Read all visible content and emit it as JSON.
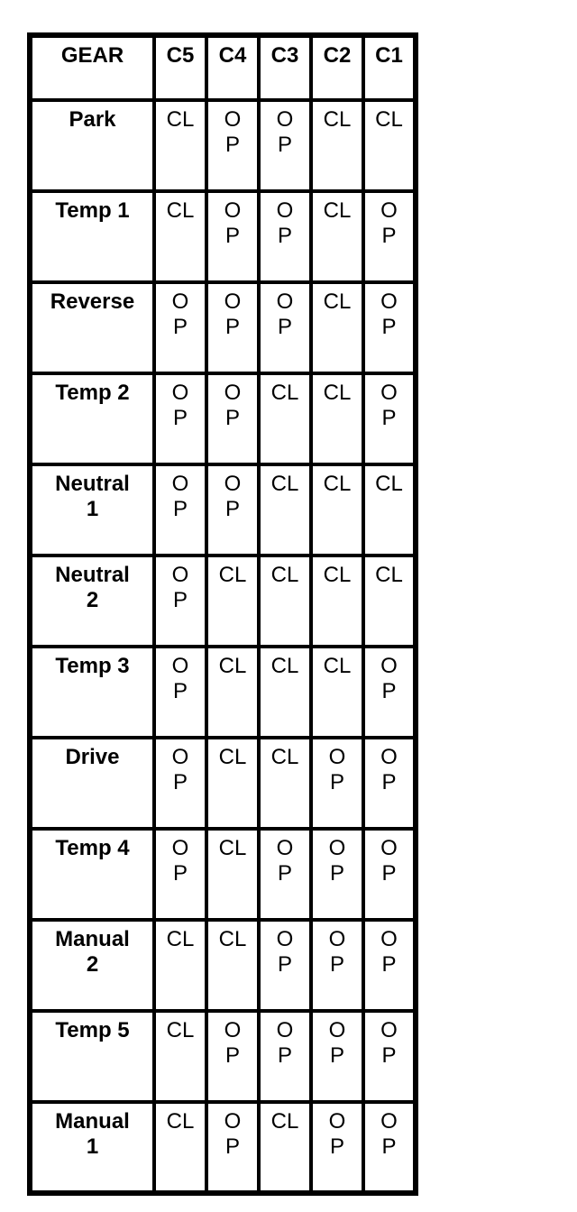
{
  "page": {
    "background_color": "#ffffff",
    "border_color": "#000000",
    "text_color": "#000000"
  },
  "chart_data": {
    "type": "table",
    "title": "GEAR clutch application table",
    "columns": [
      "GEAR",
      "C5",
      "C4",
      "C3",
      "C2",
      "C1"
    ],
    "rows": [
      {
        "gear": "Park",
        "values": [
          "CL",
          "OP",
          "OP",
          "CL",
          "CL"
        ]
      },
      {
        "gear": "Temp 1",
        "values": [
          "CL",
          "OP",
          "OP",
          "CL",
          "OP"
        ]
      },
      {
        "gear": "Reverse",
        "values": [
          "OP",
          "OP",
          "OP",
          "CL",
          "OP"
        ]
      },
      {
        "gear": "Temp 2",
        "values": [
          "OP",
          "OP",
          "CL",
          "CL",
          "OP"
        ]
      },
      {
        "gear": "Neutral 1",
        "values": [
          "OP",
          "OP",
          "CL",
          "CL",
          "CL"
        ]
      },
      {
        "gear": "Neutral 2",
        "values": [
          "OP",
          "CL",
          "CL",
          "CL",
          "CL"
        ]
      },
      {
        "gear": "Temp 3",
        "values": [
          "OP",
          "CL",
          "CL",
          "CL",
          "OP"
        ]
      },
      {
        "gear": "Drive",
        "values": [
          "OP",
          "CL",
          "CL",
          "OP",
          "OP"
        ]
      },
      {
        "gear": "Temp 4",
        "values": [
          "OP",
          "CL",
          "OP",
          "OP",
          "OP"
        ]
      },
      {
        "gear": "Manual 2",
        "values": [
          "CL",
          "CL",
          "OP",
          "OP",
          "OP"
        ]
      },
      {
        "gear": "Temp 5",
        "values": [
          "CL",
          "OP",
          "OP",
          "OP",
          "OP"
        ]
      },
      {
        "gear": "Manual 1",
        "values": [
          "CL",
          "OP",
          "CL",
          "OP",
          "OP"
        ]
      }
    ]
  },
  "table": {
    "header": [
      "GEAR",
      "C5",
      "C4",
      "C3",
      "C2",
      "C1"
    ],
    "rows": [
      {
        "gear": "Park",
        "cells": [
          "CL",
          "O\nP",
          "O\nP",
          "CL",
          "CL"
        ]
      },
      {
        "gear": "Temp 1",
        "cells": [
          "CL",
          "O\nP",
          "O\nP",
          "CL",
          "O\nP"
        ]
      },
      {
        "gear": "Reverse",
        "cells": [
          "O\nP",
          "O\nP",
          "O\nP",
          "CL",
          "O\nP"
        ]
      },
      {
        "gear": "Temp 2",
        "cells": [
          "O\nP",
          "O\nP",
          "CL",
          "CL",
          "O\nP"
        ]
      },
      {
        "gear": "Neutral\n1",
        "cells": [
          "O\nP",
          "O\nP",
          "CL",
          "CL",
          "CL"
        ]
      },
      {
        "gear": "Neutral\n2",
        "cells": [
          "O\nP",
          "CL",
          "CL",
          "CL",
          "CL"
        ]
      },
      {
        "gear": "Temp 3",
        "cells": [
          "O\nP",
          "CL",
          "CL",
          "CL",
          "O\nP"
        ]
      },
      {
        "gear": "Drive",
        "cells": [
          "O\nP",
          "CL",
          "CL",
          "O\nP",
          "O\nP"
        ]
      },
      {
        "gear": "Temp 4",
        "cells": [
          "O\nP",
          "CL",
          "O\nP",
          "O\nP",
          "O\nP"
        ]
      },
      {
        "gear": "Manual\n2",
        "cells": [
          "CL",
          "CL",
          "O\nP",
          "O\nP",
          "O\nP"
        ]
      },
      {
        "gear": "Temp 5",
        "cells": [
          "CL",
          "O\nP",
          "O\nP",
          "O\nP",
          "O\nP"
        ]
      },
      {
        "gear": "Manual\n1",
        "cells": [
          "CL",
          "O\nP",
          "CL",
          "O\nP",
          "O\nP"
        ]
      }
    ]
  }
}
